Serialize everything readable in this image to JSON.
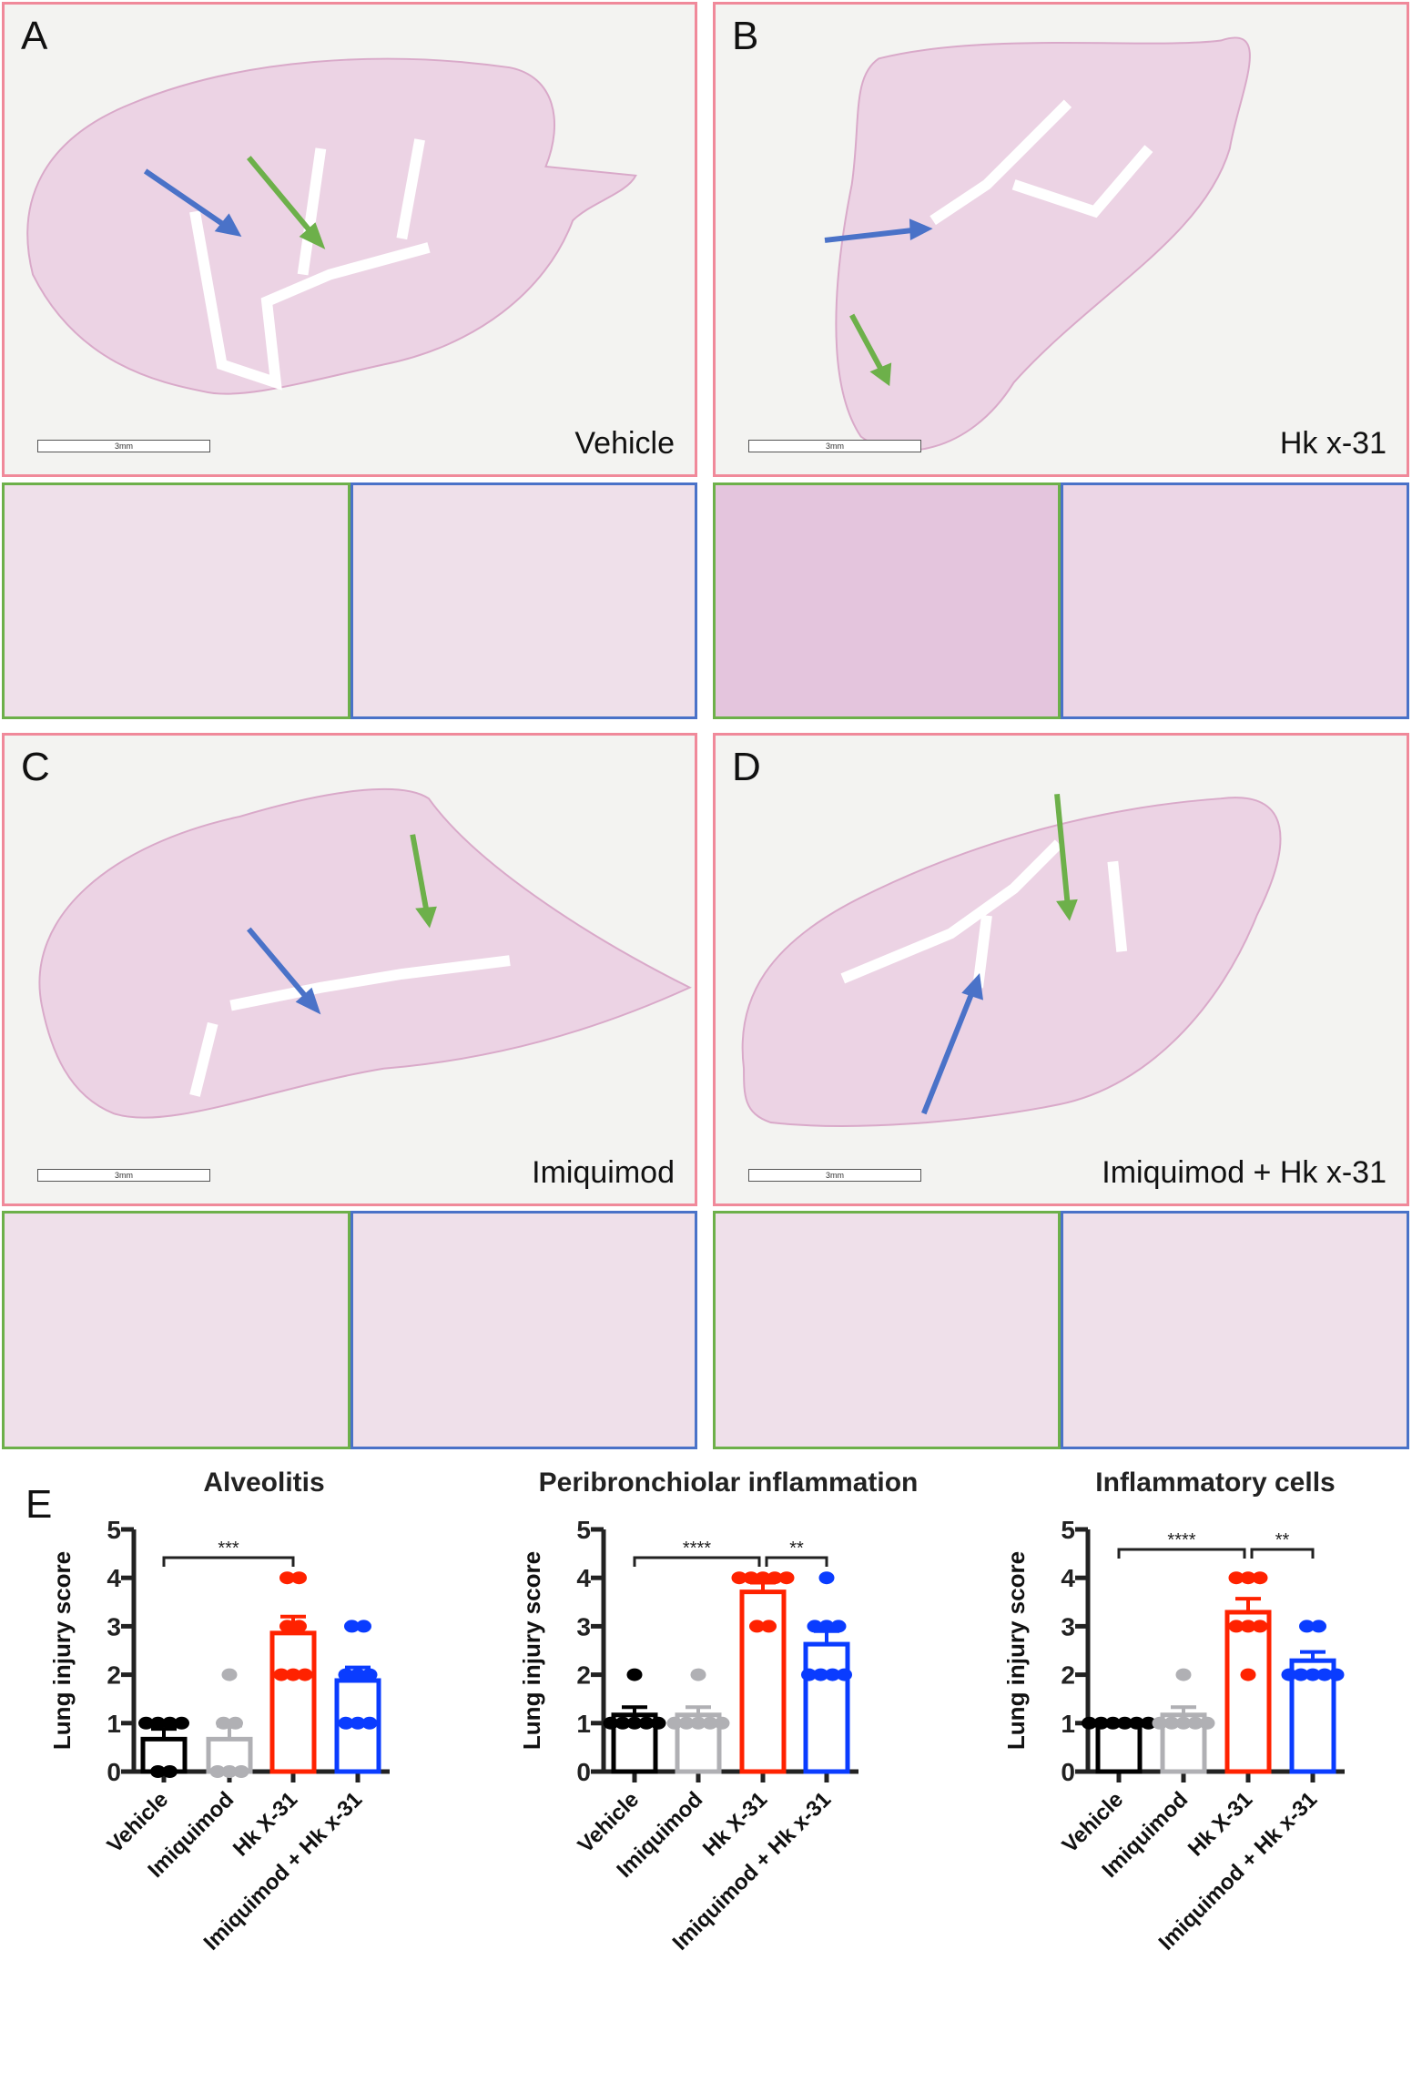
{
  "panels": [
    {
      "label": "A",
      "caption": "Vehicle",
      "scale_bar": "3mm"
    },
    {
      "label": "B",
      "caption": "Hk x-31",
      "scale_bar": "3mm"
    },
    {
      "label": "C",
      "caption": "Imiquimod",
      "scale_bar": "3mm"
    },
    {
      "label": "D",
      "caption": "Imiquimod + Hk x-31",
      "scale_bar": "3mm"
    }
  ],
  "panel_e_label": "E",
  "colors": {
    "main_border": "#f0899a",
    "green_inset": "#6db04a",
    "blue_inset": "#4a72c8",
    "vehicle": "#000000",
    "imiquimod": "#b0b0b4",
    "hk": "#ff2200",
    "combo": "#0a3cff"
  },
  "chart_data": [
    {
      "type": "bar",
      "title": "Alveolitis",
      "ylabel": "Lung injury score",
      "ylim": [
        0,
        5
      ],
      "yticks": [
        "0",
        "1",
        "2",
        "3",
        "4",
        "5"
      ],
      "categories": [
        "Vehicle",
        "Imiquimod",
        "Hk X-31",
        "Imiquimod + Hk x-31"
      ],
      "values": [
        0.67,
        0.67,
        2.86,
        1.88
      ],
      "sem_upper": [
        0.88,
        0.95,
        3.2,
        2.15
      ],
      "points": [
        [
          1,
          1,
          1,
          1,
          0,
          0
        ],
        [
          2,
          1,
          1,
          0,
          0,
          0
        ],
        [
          4,
          4,
          3,
          3,
          2,
          2,
          2
        ],
        [
          3,
          3,
          2,
          2,
          2,
          1,
          1,
          1
        ]
      ],
      "significance": [
        {
          "from": 0,
          "to": 2,
          "label": "***"
        }
      ]
    },
    {
      "type": "bar",
      "title": "Peribronchiolar inflammation",
      "ylabel": "Lung injury score",
      "ylim": [
        0,
        5
      ],
      "yticks": [
        "0",
        "1",
        "2",
        "3",
        "4",
        "5"
      ],
      "categories": [
        "Vehicle",
        "Imiquimod",
        "Hk X-31",
        "Imiquimod + Hk x-31"
      ],
      "values": [
        1.17,
        1.17,
        3.71,
        2.63
      ],
      "sem_upper": [
        1.33,
        1.33,
        3.9,
        2.9
      ],
      "points": [
        [
          2,
          1,
          1,
          1,
          1,
          1
        ],
        [
          2,
          1,
          1,
          1,
          1,
          1
        ],
        [
          4,
          4,
          4,
          4,
          4,
          3,
          3
        ],
        [
          4,
          3,
          3,
          3,
          2,
          2,
          2,
          2
        ]
      ],
      "significance": [
        {
          "from": 0,
          "to": 2,
          "label": "****"
        },
        {
          "from": 2,
          "to": 3,
          "label": "**"
        }
      ]
    },
    {
      "type": "bar",
      "title": "Inflammatory cells",
      "ylabel": "Lung injury score",
      "ylim": [
        0,
        5
      ],
      "yticks": [
        "0",
        "1",
        "2",
        "3",
        "4",
        "5"
      ],
      "categories": [
        "Vehicle",
        "Imiquimod",
        "Hk X-31",
        "Imiquimod + Hk x-31"
      ],
      "values": [
        1.0,
        1.17,
        3.29,
        2.29
      ],
      "sem_upper": [
        1.0,
        1.33,
        3.57,
        2.47
      ],
      "points": [
        [
          1,
          1,
          1,
          1,
          1,
          1
        ],
        [
          2,
          1,
          1,
          1,
          1,
          1
        ],
        [
          4,
          4,
          4,
          3,
          3,
          3,
          2
        ],
        [
          3,
          3,
          2,
          2,
          2,
          2,
          2
        ]
      ],
      "significance": [
        {
          "from": 0,
          "to": 2,
          "label": "****"
        },
        {
          "from": 2,
          "to": 3,
          "label": "**"
        }
      ]
    }
  ]
}
